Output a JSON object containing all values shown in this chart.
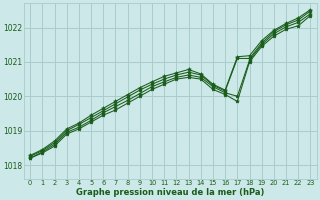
{
  "background_color": "#cce8e8",
  "grid_color": "#aacccc",
  "line_color": "#1a5c1a",
  "marker_color": "#1a5c1a",
  "xlabel": "Graphe pression niveau de la mer (hPa)",
  "xlim": [
    -0.5,
    23.5
  ],
  "ylim": [
    1017.6,
    1022.7
  ],
  "yticks": [
    1018,
    1019,
    1020,
    1021,
    1022
  ],
  "xticks": [
    0,
    1,
    2,
    3,
    4,
    5,
    6,
    7,
    8,
    9,
    10,
    11,
    12,
    13,
    14,
    15,
    16,
    17,
    18,
    19,
    20,
    21,
    22,
    23
  ],
  "series": [
    [
      1018.2,
      1018.35,
      1018.55,
      1018.9,
      1019.05,
      1019.25,
      1019.45,
      1019.6,
      1019.8,
      1020.0,
      1020.2,
      1020.35,
      1020.5,
      1020.55,
      1020.5,
      1020.2,
      1020.05,
      1019.85,
      1021.0,
      1021.45,
      1021.75,
      1021.95,
      1022.05,
      1022.35
    ],
    [
      1018.2,
      1018.38,
      1018.6,
      1018.95,
      1019.1,
      1019.3,
      1019.52,
      1019.7,
      1019.88,
      1020.08,
      1020.28,
      1020.42,
      1020.55,
      1020.62,
      1020.55,
      1020.28,
      1020.1,
      1020.0,
      1021.05,
      1021.5,
      1021.82,
      1022.02,
      1022.15,
      1022.4
    ],
    [
      1018.25,
      1018.42,
      1018.65,
      1019.0,
      1019.18,
      1019.38,
      1019.58,
      1019.78,
      1019.98,
      1020.18,
      1020.35,
      1020.5,
      1020.62,
      1020.7,
      1020.62,
      1020.32,
      1020.15,
      1021.1,
      1021.1,
      1021.55,
      1021.88,
      1022.08,
      1022.22,
      1022.48
    ],
    [
      1018.28,
      1018.45,
      1018.7,
      1019.05,
      1019.22,
      1019.45,
      1019.65,
      1019.85,
      1020.05,
      1020.25,
      1020.42,
      1020.58,
      1020.68,
      1020.78,
      1020.65,
      1020.35,
      1020.18,
      1021.15,
      1021.18,
      1021.62,
      1021.92,
      1022.12,
      1022.28,
      1022.52
    ]
  ]
}
